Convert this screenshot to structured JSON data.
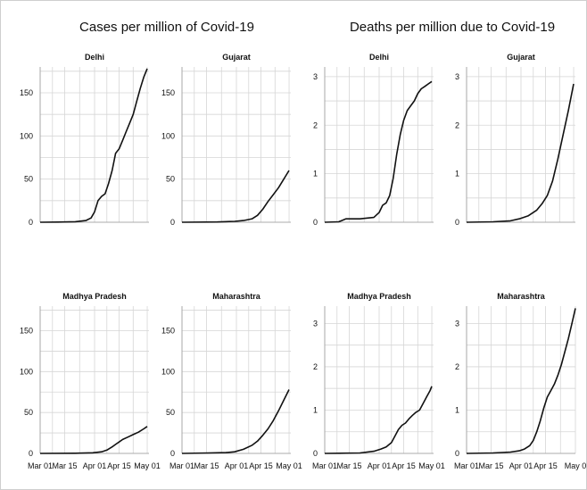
{
  "group_titles": [
    "Cases per million of Covid-19",
    "Deaths per million due to Covid-19"
  ],
  "chart_data": [
    {
      "type": "line",
      "group": "Cases per million of Covid-19",
      "title": "Delhi",
      "ylim": [
        0,
        180
      ],
      "yticks": [
        0,
        50,
        100,
        150
      ],
      "xlim": [
        0,
        62
      ],
      "xticks": [
        {
          "x": 0,
          "label": "Mar 01"
        },
        {
          "x": 14,
          "label": "Mar 15"
        },
        {
          "x": 31,
          "label": "Apr 01"
        },
        {
          "x": 45,
          "label": "Apr 15"
        },
        {
          "x": 61,
          "label": "May 01"
        }
      ],
      "x_labels_shown": false,
      "grid": true,
      "x": [
        0,
        10,
        20,
        26,
        29,
        31,
        33,
        35,
        37,
        39,
        41,
        43,
        45,
        47,
        49,
        51,
        53,
        55,
        57,
        59,
        61
      ],
      "y": [
        0,
        0.2,
        0.6,
        2,
        5,
        12,
        25,
        30,
        33,
        45,
        60,
        80,
        85,
        95,
        105,
        115,
        125,
        140,
        155,
        168,
        178
      ]
    },
    {
      "type": "line",
      "group": "Cases per million of Covid-19",
      "title": "Gujarat",
      "ylim": [
        0,
        180
      ],
      "yticks": [
        0,
        50,
        100,
        150
      ],
      "xlim": [
        0,
        62
      ],
      "xticks": [
        {
          "x": 0,
          "label": "Mar 01"
        },
        {
          "x": 14,
          "label": "Mar 15"
        },
        {
          "x": 31,
          "label": "Apr 01"
        },
        {
          "x": 45,
          "label": "Apr 15"
        },
        {
          "x": 61,
          "label": "May 01"
        }
      ],
      "x_labels_shown": false,
      "grid": true,
      "x": [
        0,
        20,
        30,
        35,
        40,
        43,
        46,
        49,
        52,
        55,
        58,
        61
      ],
      "y": [
        0,
        0.3,
        1,
        2,
        4,
        8,
        15,
        24,
        32,
        40,
        50,
        60
      ]
    },
    {
      "type": "line",
      "group": "Deaths per million due to Covid-19",
      "title": "Delhi",
      "ylim": [
        0,
        3.2
      ],
      "yticks": [
        0,
        1,
        2,
        3
      ],
      "xlim": [
        0,
        62
      ],
      "xticks": [
        {
          "x": 0,
          "label": "Mar 01"
        },
        {
          "x": 14,
          "label": "Mar 15"
        },
        {
          "x": 31,
          "label": "Apr 01"
        },
        {
          "x": 45,
          "label": "Apr 15"
        },
        {
          "x": 61,
          "label": "May 01"
        }
      ],
      "x_labels_shown": false,
      "grid": true,
      "x": [
        0,
        8,
        12,
        20,
        28,
        31,
        33,
        35,
        37,
        39,
        41,
        43,
        45,
        47,
        49,
        51,
        53,
        55,
        57,
        59,
        61
      ],
      "y": [
        0,
        0.01,
        0.07,
        0.07,
        0.1,
        0.2,
        0.35,
        0.4,
        0.55,
        0.9,
        1.4,
        1.8,
        2.1,
        2.3,
        2.4,
        2.5,
        2.65,
        2.75,
        2.8,
        2.85,
        2.9
      ]
    },
    {
      "type": "line",
      "group": "Deaths per million due to Covid-19",
      "title": "Gujarat",
      "ylim": [
        0,
        3.2
      ],
      "yticks": [
        0,
        1,
        2,
        3
      ],
      "xlim": [
        0,
        62
      ],
      "xticks": [
        {
          "x": 0,
          "label": "Mar 01"
        },
        {
          "x": 14,
          "label": "Mar 15"
        },
        {
          "x": 31,
          "label": "Apr 01"
        },
        {
          "x": 45,
          "label": "Apr 15"
        },
        {
          "x": 61,
          "label": "May 01"
        }
      ],
      "x_labels_shown": false,
      "grid": true,
      "x": [
        0,
        15,
        25,
        30,
        35,
        40,
        43,
        46,
        49,
        52,
        55,
        58,
        61
      ],
      "y": [
        0,
        0.01,
        0.03,
        0.07,
        0.13,
        0.25,
        0.38,
        0.55,
        0.85,
        1.3,
        1.8,
        2.3,
        2.85
      ]
    },
    {
      "type": "line",
      "group": "Cases per million of Covid-19",
      "title": "Madhya Pradesh",
      "ylim": [
        0,
        180
      ],
      "yticks": [
        0,
        50,
        100,
        150
      ],
      "xlim": [
        0,
        62
      ],
      "xticks": [
        {
          "x": 0,
          "label": "Mar 01"
        },
        {
          "x": 14,
          "label": "Mar 15"
        },
        {
          "x": 31,
          "label": "Apr 01"
        },
        {
          "x": 45,
          "label": "Apr 15"
        },
        {
          "x": 61,
          "label": "May 01"
        }
      ],
      "x_labels_shown": true,
      "grid": true,
      "x": [
        0,
        20,
        30,
        35,
        38,
        41,
        43,
        45,
        47,
        50,
        53,
        56,
        59,
        61
      ],
      "y": [
        0,
        0.2,
        0.8,
        2,
        4,
        8,
        11,
        14,
        17,
        20,
        23,
        26,
        30,
        33
      ]
    },
    {
      "type": "line",
      "group": "Cases per million of Covid-19",
      "title": "Maharashtra",
      "ylim": [
        0,
        180
      ],
      "yticks": [
        0,
        50,
        100,
        150
      ],
      "xlim": [
        0,
        62
      ],
      "xticks": [
        {
          "x": 0,
          "label": "Mar 01"
        },
        {
          "x": 14,
          "label": "Mar 15"
        },
        {
          "x": 31,
          "label": "Apr 01"
        },
        {
          "x": 45,
          "label": "Apr 15"
        },
        {
          "x": 61,
          "label": "May 01"
        }
      ],
      "x_labels_shown": true,
      "grid": true,
      "x": [
        0,
        15,
        25,
        30,
        35,
        40,
        43,
        46,
        49,
        52,
        55,
        58,
        61
      ],
      "y": [
        0,
        0.5,
        1,
        2,
        5,
        10,
        15,
        22,
        30,
        40,
        52,
        65,
        78
      ]
    },
    {
      "type": "line",
      "group": "Deaths per million due to Covid-19",
      "title": "Madhya Pradesh",
      "ylim": [
        0,
        3.4
      ],
      "yticks": [
        0,
        1,
        2,
        3
      ],
      "xlim": [
        0,
        62
      ],
      "xticks": [
        {
          "x": 0,
          "label": "Mar 01"
        },
        {
          "x": 14,
          "label": "Mar 15"
        },
        {
          "x": 31,
          "label": "Apr 01"
        },
        {
          "x": 45,
          "label": "Apr 15"
        },
        {
          "x": 61,
          "label": "May 01"
        }
      ],
      "x_labels_shown": true,
      "grid": true,
      "x": [
        0,
        20,
        28,
        32,
        35,
        38,
        40,
        42,
        44,
        46,
        48,
        50,
        52,
        54,
        56,
        58,
        60,
        61
      ],
      "y": [
        0,
        0.01,
        0.05,
        0.1,
        0.15,
        0.25,
        0.4,
        0.55,
        0.65,
        0.7,
        0.8,
        0.88,
        0.95,
        1.0,
        1.15,
        1.3,
        1.45,
        1.55
      ]
    },
    {
      "type": "line",
      "group": "Deaths per million due to Covid-19",
      "title": "Maharashtra",
      "ylim": [
        0,
        3.4
      ],
      "yticks": [
        0,
        1,
        2,
        3
      ],
      "xlim": [
        0,
        62
      ],
      "xticks": [
        {
          "x": 0,
          "label": "Mar 01"
        },
        {
          "x": 14,
          "label": "Mar 15"
        },
        {
          "x": 31,
          "label": "Apr 01"
        },
        {
          "x": 45,
          "label": "Apr 15"
        },
        {
          "x": 62,
          "label": "May 0"
        }
      ],
      "x_labels_shown": true,
      "grid": true,
      "x": [
        0,
        15,
        25,
        30,
        33,
        36,
        38,
        40,
        42,
        44,
        46,
        48,
        50,
        52,
        54,
        56,
        58,
        60,
        62
      ],
      "y": [
        0,
        0.01,
        0.03,
        0.06,
        0.1,
        0.18,
        0.3,
        0.5,
        0.75,
        1.05,
        1.3,
        1.45,
        1.6,
        1.8,
        2.05,
        2.35,
        2.65,
        3.0,
        3.35
      ]
    }
  ]
}
